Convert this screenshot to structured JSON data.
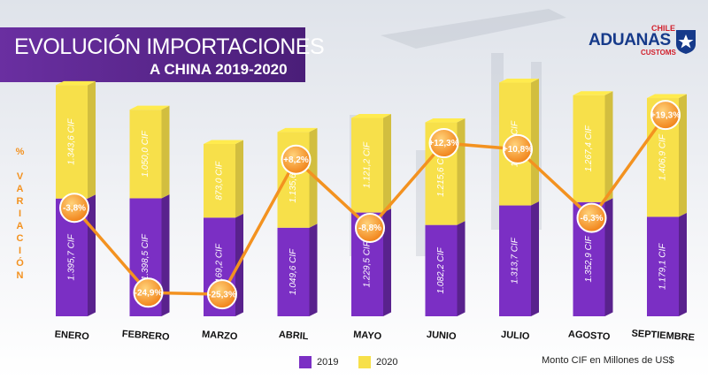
{
  "title": {
    "line1": "EVOLUCIÓN IMPORTACIONES",
    "line2": "A CHINA 2019-2020"
  },
  "logo": {
    "country": "CHILE",
    "name": "ADUANAS",
    "sub": "CUSTOMS"
  },
  "ylabel": "% VARIACIÓN",
  "legend": {
    "s2019": "2019",
    "s2020": "2020"
  },
  "note": "Monto CIF en Millones de US$",
  "colors": {
    "c2019": "#7b2fc4",
    "c2020": "#f7e04a",
    "line": "#f39220",
    "title_bg": "#5b2a86"
  },
  "chart_data": {
    "type": "bar",
    "categories": [
      "ENERO",
      "FEBRERO",
      "MARZO",
      "ABRIL",
      "MAYO",
      "JUNIO",
      "JULIO",
      "AGOSTO",
      "SEPTIEMBRE"
    ],
    "series": [
      {
        "name": "2019",
        "values": [
          1395.7,
          1398.5,
          1169.2,
          1049.6,
          1229.5,
          1082.2,
          1313.7,
          1352.9,
          1179.1
        ],
        "labels": [
          "1.395,7 CIF",
          "1.398,5 CIF",
          "1.169,2 CIF",
          "1.049,6 CIF",
          "1.229,5 CIF",
          "1.082,2 CIF",
          "1.313,7 CIF",
          "1.352,9 CIF",
          "1.179,1 CIF"
        ]
      },
      {
        "name": "2020",
        "values": [
          1343.6,
          1050.0,
          873.0,
          1135.6,
          1121.2,
          1215.6,
          1455.6,
          1267.4,
          1406.9
        ],
        "labels": [
          "1.343,6 CIF",
          "1.050,0 CIF",
          "873,0 CIF",
          "1.135,6 CIF",
          "1.121,2 CIF",
          "1.215,6 CIF",
          "1.455,6 CIF",
          "1.267,4 CIF",
          "1.406,9 CIF"
        ]
      }
    ],
    "variation": {
      "values": [
        -3.8,
        -24.9,
        -25.3,
        8.2,
        -8.8,
        12.3,
        10.8,
        -6.3,
        19.3
      ],
      "labels": [
        "-3,8%",
        "-24,9%",
        "-25,3%",
        "+8,2%",
        "-8,8%",
        "+12,3%",
        "+10,8%",
        "-6,3%",
        "+19,3%"
      ]
    },
    "ylabel": "% VARIACIÓN"
  }
}
